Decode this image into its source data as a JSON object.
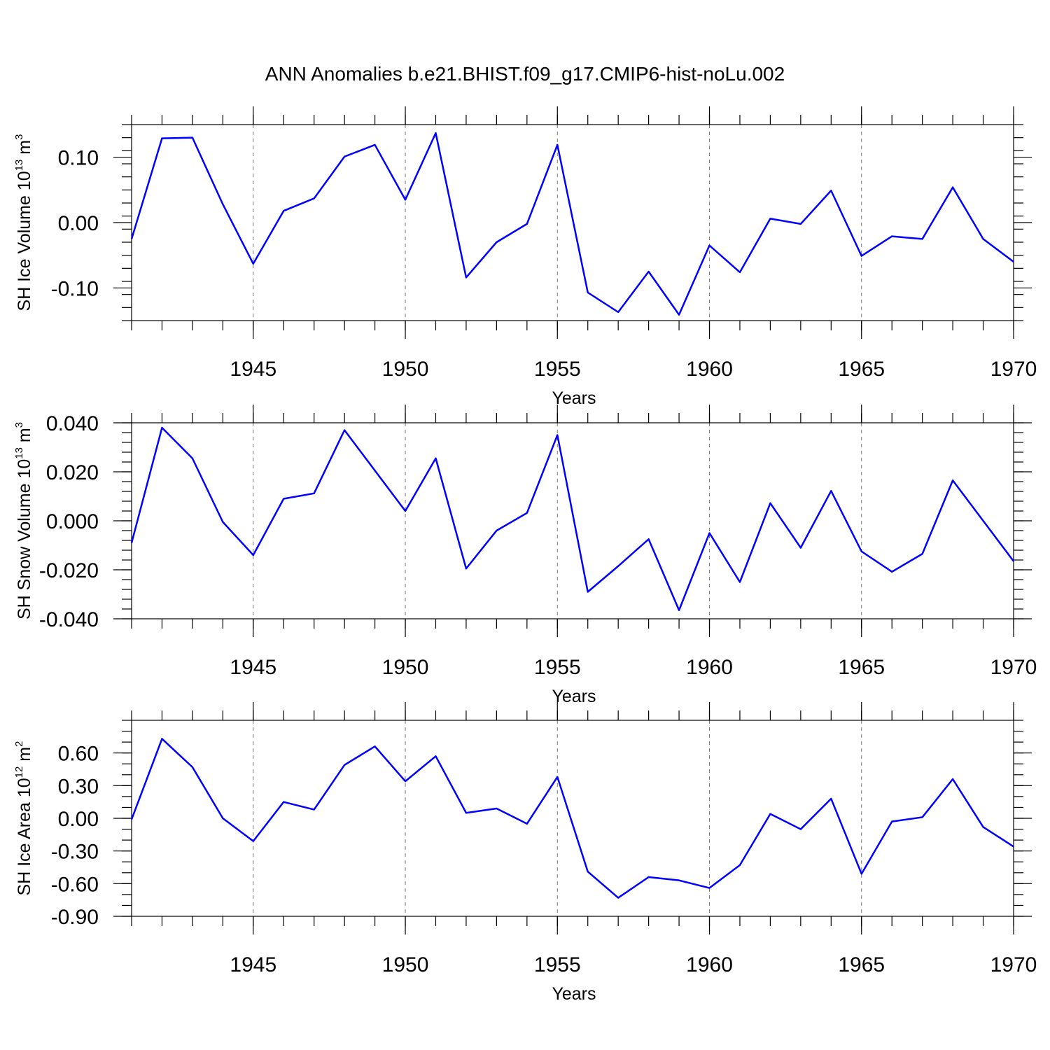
{
  "title": "ANN Anomalies b.e21.BHIST.f09_g17.CMIP6-hist-noLu.002",
  "line_color": "#0000ff",
  "chart_data": [
    {
      "type": "line",
      "xlabel": "Years",
      "ylabel_main": "SH Ice Volume 10",
      "ylabel_exp": "13",
      "ylabel_unit": " m",
      "ylabel_unit_exp": "3",
      "xlim": [
        1941,
        1970
      ],
      "ylim": [
        -0.15,
        0.15
      ],
      "xticks": [
        1945,
        1950,
        1955,
        1960,
        1965,
        1970
      ],
      "xtick_labels": [
        "1945",
        "1950",
        "1955",
        "1960",
        "1965",
        "1970"
      ],
      "yticks": [
        0.1,
        0.0,
        -0.1
      ],
      "ytick_labels": [
        "0.10",
        "0.00",
        "-0.10"
      ],
      "yminor_step": 0.02,
      "vgrid": [
        1945,
        1950,
        1955,
        1960,
        1965
      ],
      "x": [
        1941,
        1942,
        1943,
        1944,
        1945,
        1946,
        1947,
        1948,
        1949,
        1950,
        1951,
        1952,
        1953,
        1954,
        1955,
        1956,
        1957,
        1958,
        1959,
        1960,
        1961,
        1962,
        1963,
        1964,
        1965,
        1966,
        1967,
        1968,
        1969,
        1970
      ],
      "y": [
        -0.025,
        0.129,
        0.13,
        0.028,
        -0.063,
        0.018,
        0.037,
        0.101,
        0.119,
        0.035,
        0.137,
        -0.084,
        -0.03,
        -0.002,
        0.119,
        -0.107,
        -0.137,
        -0.075,
        -0.141,
        -0.035,
        -0.076,
        0.006,
        -0.002,
        0.049,
        -0.051,
        -0.021,
        -0.025,
        0.054,
        -0.025,
        -0.06
      ]
    },
    {
      "type": "line",
      "xlabel": "Years",
      "ylabel_main": "SH Snow Volume 10",
      "ylabel_exp": "13",
      "ylabel_unit": " m",
      "ylabel_unit_exp": "3",
      "xlim": [
        1941,
        1970
      ],
      "ylim": [
        -0.04,
        0.04
      ],
      "xticks": [
        1945,
        1950,
        1955,
        1960,
        1965,
        1970
      ],
      "xtick_labels": [
        "1945",
        "1950",
        "1955",
        "1960",
        "1965",
        "1970"
      ],
      "yticks": [
        0.04,
        0.02,
        0.0,
        -0.02,
        -0.04
      ],
      "ytick_labels": [
        "0.040",
        "0.020",
        "0.000",
        "-0.020",
        "-0.040"
      ],
      "yminor_step": 0.004,
      "vgrid": [
        1945,
        1950,
        1955,
        1960,
        1965
      ],
      "x": [
        1941,
        1942,
        1943,
        1944,
        1945,
        1946,
        1947,
        1948,
        1949,
        1950,
        1951,
        1952,
        1953,
        1954,
        1955,
        1956,
        1957,
        1958,
        1959,
        1960,
        1961,
        1962,
        1963,
        1964,
        1965,
        1966,
        1967,
        1968,
        1969,
        1970
      ],
      "y": [
        -0.009,
        0.038,
        0.0255,
        -0.0005,
        -0.014,
        0.009,
        0.0112,
        0.037,
        0.0205,
        0.004,
        0.0255,
        -0.0195,
        -0.004,
        0.0032,
        0.035,
        -0.029,
        -0.0185,
        -0.0075,
        -0.0365,
        -0.005,
        -0.025,
        0.0072,
        -0.011,
        0.0122,
        -0.0125,
        -0.0208,
        -0.0135,
        0.0165,
        0.0,
        -0.0165
      ]
    },
    {
      "type": "line",
      "xlabel": "Years",
      "ylabel_main": "SH Ice Area 10",
      "ylabel_exp": "12",
      "ylabel_unit": " m",
      "ylabel_unit_exp": "2",
      "xlim": [
        1941,
        1970
      ],
      "ylim": [
        -0.9,
        0.9
      ],
      "xticks": [
        1945,
        1950,
        1955,
        1960,
        1965,
        1970
      ],
      "xtick_labels": [
        "1945",
        "1950",
        "1955",
        "1960",
        "1965",
        "1970"
      ],
      "yticks": [
        0.6,
        0.3,
        0.0,
        -0.3,
        -0.6,
        -0.9
      ],
      "ytick_labels": [
        "0.60",
        "0.30",
        "0.00",
        "-0.30",
        "-0.60",
        "-0.90"
      ],
      "yminor_step": 0.1,
      "vgrid": [
        1945,
        1950,
        1955,
        1960,
        1965
      ],
      "x": [
        1941,
        1942,
        1943,
        1944,
        1945,
        1946,
        1947,
        1948,
        1949,
        1950,
        1951,
        1952,
        1953,
        1954,
        1955,
        1956,
        1957,
        1958,
        1959,
        1960,
        1961,
        1962,
        1963,
        1964,
        1965,
        1966,
        1967,
        1968,
        1969,
        1970
      ],
      "y": [
        -0.01,
        0.73,
        0.47,
        0.0,
        -0.21,
        0.15,
        0.08,
        0.49,
        0.66,
        0.34,
        0.57,
        0.05,
        0.09,
        -0.05,
        0.38,
        -0.49,
        -0.73,
        -0.54,
        -0.57,
        -0.64,
        -0.43,
        0.04,
        -0.1,
        0.18,
        -0.51,
        -0.03,
        0.01,
        0.36,
        -0.08,
        -0.26
      ]
    }
  ]
}
